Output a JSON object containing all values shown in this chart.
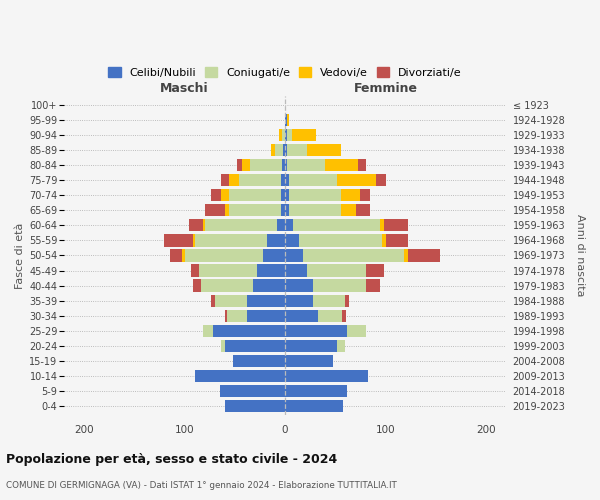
{
  "age_groups": [
    "0-4",
    "5-9",
    "10-14",
    "15-19",
    "20-24",
    "25-29",
    "30-34",
    "35-39",
    "40-44",
    "45-49",
    "50-54",
    "55-59",
    "60-64",
    "65-69",
    "70-74",
    "75-79",
    "80-84",
    "85-89",
    "90-94",
    "95-99",
    "100+"
  ],
  "birth_years": [
    "2019-2023",
    "2014-2018",
    "2009-2013",
    "2004-2008",
    "1999-2003",
    "1994-1998",
    "1989-1993",
    "1984-1988",
    "1979-1983",
    "1974-1978",
    "1969-1973",
    "1964-1968",
    "1959-1963",
    "1954-1958",
    "1949-1953",
    "1944-1948",
    "1939-1943",
    "1934-1938",
    "1929-1933",
    "1924-1928",
    "≤ 1923"
  ],
  "male": {
    "celibi": [
      60,
      65,
      90,
      52,
      60,
      72,
      38,
      38,
      32,
      28,
      22,
      18,
      8,
      4,
      4,
      4,
      3,
      2,
      0,
      0,
      0
    ],
    "coniugati": [
      0,
      0,
      0,
      0,
      4,
      10,
      20,
      32,
      52,
      58,
      78,
      72,
      72,
      52,
      52,
      42,
      32,
      8,
      3,
      0,
      0
    ],
    "vedovi": [
      0,
      0,
      0,
      0,
      0,
      0,
      0,
      0,
      0,
      0,
      2,
      2,
      2,
      4,
      8,
      10,
      8,
      4,
      3,
      0,
      0
    ],
    "divorziati": [
      0,
      0,
      0,
      0,
      0,
      0,
      2,
      4,
      8,
      8,
      12,
      28,
      14,
      20,
      10,
      8,
      5,
      0,
      0,
      0,
      0
    ]
  },
  "female": {
    "nubili": [
      58,
      62,
      82,
      48,
      52,
      62,
      33,
      28,
      28,
      22,
      18,
      14,
      8,
      4,
      4,
      4,
      2,
      2,
      2,
      2,
      0
    ],
    "coniugate": [
      0,
      0,
      0,
      0,
      8,
      18,
      24,
      32,
      52,
      58,
      100,
      82,
      86,
      52,
      52,
      48,
      38,
      20,
      5,
      0,
      0
    ],
    "vedove": [
      0,
      0,
      0,
      0,
      0,
      0,
      0,
      0,
      0,
      0,
      4,
      4,
      4,
      14,
      18,
      38,
      32,
      34,
      24,
      2,
      0
    ],
    "divorziate": [
      0,
      0,
      0,
      0,
      0,
      0,
      4,
      4,
      14,
      18,
      32,
      22,
      24,
      14,
      10,
      10,
      8,
      0,
      0,
      0,
      0
    ]
  },
  "colors": {
    "celibi": "#4472c4",
    "coniugati": "#c5d9a0",
    "vedovi": "#ffc000",
    "divorziati": "#c0504d"
  },
  "title": "Popolazione per età, sesso e stato civile - 2024",
  "subtitle": "COMUNE DI GERMIGNAGA (VA) - Dati ISTAT 1° gennaio 2024 - Elaborazione TUTTITALIA.IT",
  "xlabel_left": "Maschi",
  "xlabel_right": "Femmine",
  "ylabel_left": "Fasce di età",
  "ylabel_right": "Anni di nascita",
  "legend_labels": [
    "Celibi/Nubili",
    "Coniugati/e",
    "Vedovi/e",
    "Divorziati/e"
  ],
  "xlim": 220,
  "background_color": "#f5f5f5"
}
